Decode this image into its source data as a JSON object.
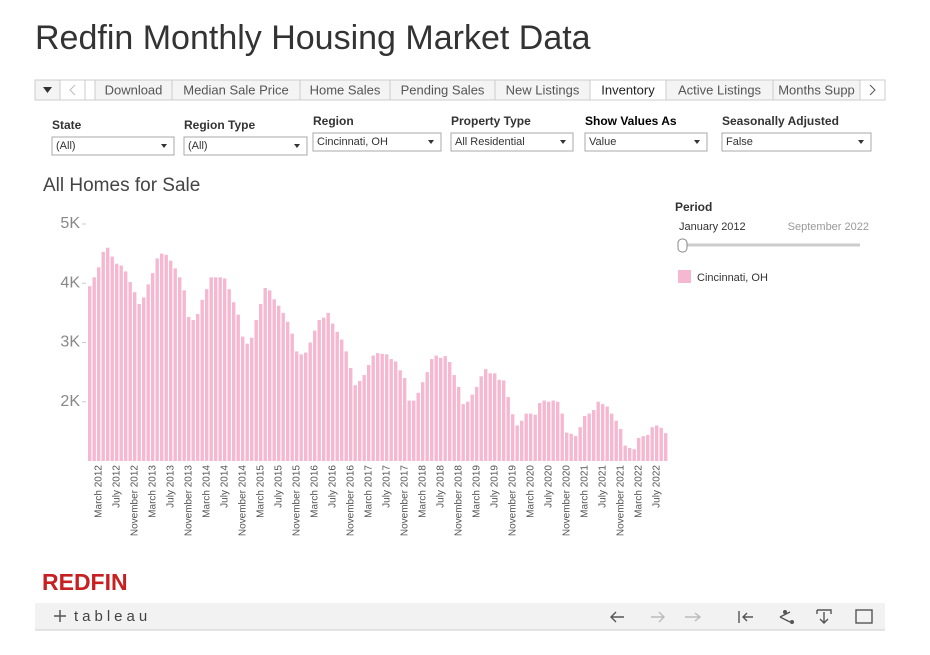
{
  "header": {
    "title": "Redfin Monthly Housing Market Data"
  },
  "tabs": [
    "Download",
    "Median Sale Price",
    "Home Sales",
    "Pending Sales",
    "New Listings",
    "Inventory",
    "Active Listings",
    "Months Supp"
  ],
  "active_tab": 5,
  "filters": [
    {
      "label": "State",
      "value": "(All)"
    },
    {
      "label": "Region Type",
      "value": "(All)"
    },
    {
      "label": "Region",
      "value": "Cincinnati, OH"
    },
    {
      "label": "Property Type",
      "value": "All Residential"
    },
    {
      "label": "Show Values As",
      "value": "Value"
    },
    {
      "label": "Seasonally Adjusted",
      "value": "False"
    }
  ],
  "period": {
    "label": "Period",
    "start": "January 2012",
    "end": "September 2022"
  },
  "footer": {
    "logo": "REDFIN",
    "brand": "tableau"
  },
  "chart_data": {
    "type": "bar",
    "title": "All Homes for Sale",
    "categories": [
      null,
      null,
      "March 2012",
      null,
      null,
      null,
      "July 2012",
      null,
      null,
      null,
      "November 2012",
      null,
      null,
      null,
      "March 2013",
      null,
      null,
      null,
      "July 2013",
      null,
      null,
      null,
      "November 2013",
      null,
      null,
      null,
      "March 2014",
      null,
      null,
      null,
      "July 2014",
      null,
      null,
      null,
      "November 2014",
      null,
      null,
      null,
      "March 2015",
      null,
      null,
      null,
      "July 2015",
      null,
      null,
      null,
      "November 2015",
      null,
      null,
      null,
      "March 2016",
      null,
      null,
      null,
      "July 2016",
      null,
      null,
      null,
      "November 2016",
      null,
      null,
      null,
      "March 2017",
      null,
      null,
      null,
      "July 2017",
      null,
      null,
      null,
      "November 2017",
      null,
      null,
      null,
      "March 2018",
      null,
      null,
      null,
      "July 2018",
      null,
      null,
      null,
      "November 2018",
      null,
      null,
      null,
      "March 2019",
      null,
      null,
      null,
      "July 2019",
      null,
      null,
      null,
      "November 2019",
      null,
      null,
      null,
      "March 2020",
      null,
      null,
      null,
      "July 2020",
      null,
      null,
      null,
      "November 2020",
      null,
      null,
      null,
      "March 2021",
      null,
      null,
      null,
      "July 2021",
      null,
      null,
      null,
      "November 2021",
      null,
      null,
      null,
      "March 2022",
      null,
      null,
      null,
      "July 2022",
      null,
      null
    ],
    "series": [
      {
        "name": "Cincinnati, OH",
        "color": "#f5b8d0",
        "values": [
          3950,
          4100,
          4270,
          4530,
          4600,
          4450,
          4330,
          4300,
          4200,
          4020,
          3850,
          3650,
          3760,
          3980,
          4170,
          4420,
          4500,
          4480,
          4380,
          4250,
          4100,
          3880,
          3430,
          3380,
          3480,
          3720,
          3900,
          4100,
          4100,
          4100,
          4080,
          3900,
          3680,
          3470,
          3100,
          2980,
          3080,
          3380,
          3650,
          3920,
          3880,
          3730,
          3620,
          3500,
          3350,
          3150,
          2850,
          2800,
          2830,
          3000,
          3200,
          3380,
          3420,
          3500,
          3320,
          3180,
          3050,
          2850,
          2570,
          2280,
          2350,
          2450,
          2620,
          2780,
          2820,
          2810,
          2800,
          2720,
          2680,
          2530,
          2400,
          2020,
          2020,
          2150,
          2330,
          2500,
          2720,
          2780,
          2740,
          2770,
          2670,
          2450,
          2250,
          1960,
          2000,
          2120,
          2250,
          2430,
          2550,
          2480,
          2480,
          2370,
          2360,
          2080,
          1790,
          1600,
          1680,
          1800,
          1800,
          1780,
          1980,
          2020,
          2000,
          2020,
          2000,
          1800,
          1480,
          1460,
          1420,
          1570,
          1760,
          1800,
          1860,
          2000,
          1960,
          1920,
          1800,
          1680,
          1540,
          1260,
          1220,
          1200,
          1390,
          1420,
          1440,
          1570,
          1600,
          1560,
          1470
        ]
      }
    ],
    "ylim": [
      1000,
      5000
    ],
    "yticks": [
      {
        "value": 2000,
        "label": "2K"
      },
      {
        "value": 3000,
        "label": "3K"
      },
      {
        "value": 4000,
        "label": "4K"
      },
      {
        "value": 5000,
        "label": "5K"
      }
    ]
  }
}
